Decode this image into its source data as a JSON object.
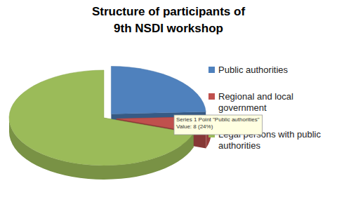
{
  "chart_data": {
    "type": "pie",
    "title": "Structure of participants of 9th NSDI workshop",
    "categories": [
      "Public authorities",
      "Regional and local government",
      "Legal persons with public authorities"
    ],
    "values": [
      8,
      2,
      23
    ],
    "colors": [
      "#4f81bd",
      "#c0504d",
      "#9bbb59"
    ],
    "legend": "right",
    "annotations": [
      "Series 1 Point \"Public authorities\"",
      "Value: 8 (24%)"
    ]
  }
}
